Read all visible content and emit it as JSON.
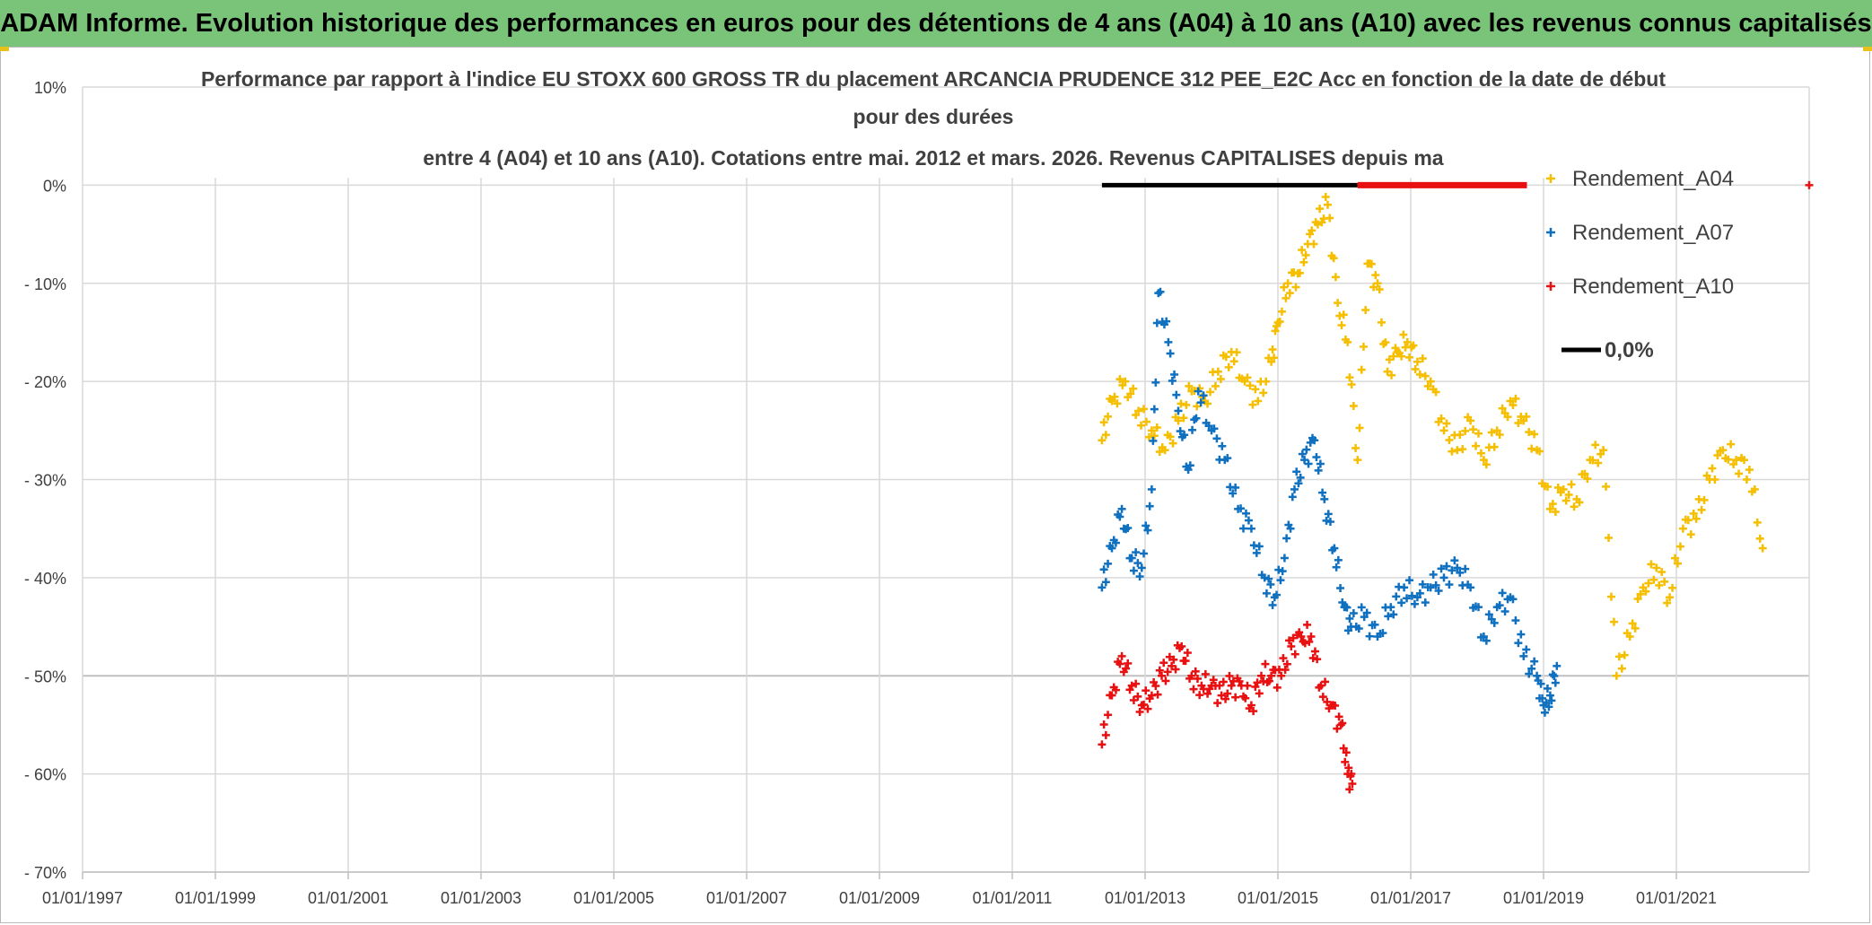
{
  "header": {
    "banner": "ADAM Informe. Evolution historique des performances en euros pour des détentions de 4 ans (A04) à 10 ans (A10) avec les revenus connus capitalisés"
  },
  "colors": {
    "banner_bg": "#7ac47a",
    "a04": "#f5bf00",
    "a07": "#1070c0",
    "a10": "#e81010",
    "zero": "#000000",
    "grid": "#d9d9d9"
  },
  "chart_data": {
    "type": "scatter",
    "title_lines": [
      "Performance par rapport à l'indice EU STOXX 600 GROSS TR  du placement ARCANCIA PRUDENCE 312 PEE_E2C Acc en fonction de la date de début",
      "pour des durées",
      "entre 4 (A04) et 10 ans (A10). Cotations entre mai. 2012 et mars. 2026. Revenus CAPITALISES depuis ma"
    ],
    "x_tick_labels": [
      "01/01/1997",
      "01/01/1999",
      "01/01/2001",
      "01/01/2003",
      "01/01/2005",
      "01/01/2007",
      "01/01/2009",
      "01/01/2011",
      "01/01/2013",
      "01/01/2015",
      "01/01/2017",
      "01/01/2019",
      "01/01/2021"
    ],
    "x_ticks_year": [
      1997,
      1999,
      2001,
      2003,
      2005,
      2007,
      2009,
      2011,
      2013,
      2015,
      2017,
      2019,
      2021
    ],
    "xlim": [
      1997.0,
      2023.0
    ],
    "y_tick_labels": [
      "10%",
      "0%",
      "- 10%",
      "- 20%",
      "- 30%",
      "- 40%",
      "- 50%",
      "- 60%",
      "- 70%"
    ],
    "y_ticks": [
      10,
      0,
      -10,
      -20,
      -30,
      -40,
      -50,
      -60,
      -70
    ],
    "ylim": [
      -70,
      10
    ],
    "legend": [
      "Rendement_A04",
      "Rendement_A07",
      "Rendement_A10",
      "0,0%"
    ],
    "series": [
      {
        "name": "Rendement_A04",
        "color": "#f5bf00",
        "x": [
          2012.35,
          2012.5,
          2012.7,
          2012.9,
          2013.1,
          2013.3,
          2013.5,
          2013.7,
          2013.9,
          2014.1,
          2014.3,
          2014.5,
          2014.7,
          2014.9,
          2015.0,
          2015.15,
          2015.3,
          2015.45,
          2015.6,
          2015.75,
          2015.9,
          2016.05,
          2016.2,
          2016.35,
          2016.5,
          2016.65,
          2016.8,
          2016.95,
          2017.1,
          2017.3,
          2017.5,
          2017.7,
          2017.9,
          2018.1,
          2018.3,
          2018.5,
          2018.7,
          2018.9,
          2019.1,
          2019.3,
          2019.5,
          2019.7,
          2019.9,
          2020.1,
          2020.3,
          2020.5,
          2020.7,
          2020.9,
          2021.1,
          2021.3,
          2021.5,
          2021.7,
          2021.9,
          2022.1,
          2022.3
        ],
        "y": [
          -26,
          -22,
          -20,
          -23,
          -25,
          -27,
          -24,
          -21,
          -22,
          -19,
          -17,
          -20,
          -22,
          -18,
          -14,
          -10,
          -9,
          -6,
          -4,
          -2,
          -12,
          -16,
          -28,
          -8,
          -10,
          -19,
          -17,
          -16,
          -18,
          -20,
          -25,
          -27,
          -24,
          -28,
          -25,
          -22,
          -24,
          -27,
          -33,
          -31,
          -32,
          -28,
          -27,
          -50,
          -46,
          -41,
          -39,
          -42,
          -35,
          -34,
          -30,
          -27,
          -28,
          -29,
          -37
        ]
      },
      {
        "name": "Rendement_A07",
        "color": "#1070c0",
        "x": [
          2012.35,
          2012.5,
          2012.65,
          2012.8,
          2012.95,
          2013.1,
          2013.2,
          2013.35,
          2013.5,
          2013.65,
          2013.8,
          2014.0,
          2014.2,
          2014.4,
          2014.6,
          2014.8,
          2014.95,
          2015.1,
          2015.25,
          2015.4,
          2015.55,
          2015.7,
          2015.85,
          2016.0,
          2016.1,
          2016.3,
          2016.5,
          2016.7,
          2016.9,
          2017.1,
          2017.3,
          2017.5,
          2017.7,
          2017.9,
          2018.1,
          2018.3,
          2018.5,
          2018.7,
          2018.9,
          2019.0,
          2019.1,
          2019.2
        ],
        "y": [
          -41,
          -37,
          -33,
          -38,
          -39,
          -31,
          -11,
          -16,
          -23,
          -29,
          -21,
          -25,
          -28,
          -33,
          -35,
          -40,
          -42,
          -38,
          -31,
          -28,
          -26,
          -32,
          -37,
          -43,
          -45,
          -44,
          -46,
          -43,
          -41,
          -42,
          -41,
          -40,
          -39,
          -41,
          -46,
          -43,
          -42,
          -48,
          -50,
          -53,
          -52,
          -49
        ]
      },
      {
        "name": "Rendement_A10",
        "color": "#e81010",
        "x": [
          2012.35,
          2012.5,
          2012.65,
          2012.8,
          2012.95,
          2013.1,
          2013.25,
          2013.4,
          2013.55,
          2013.7,
          2013.85,
          2014.0,
          2014.15,
          2014.3,
          2014.45,
          2014.6,
          2014.75,
          2014.9,
          2015.05,
          2015.2,
          2015.35,
          2015.5,
          2015.65,
          2015.8,
          2015.95,
          2016.05,
          2016.12
        ],
        "y": [
          -57,
          -52,
          -48,
          -51,
          -53,
          -52,
          -50,
          -49,
          -47,
          -50,
          -51,
          -51,
          -52,
          -51,
          -51,
          -53,
          -50,
          -50,
          -50,
          -47,
          -46,
          -46,
          -51,
          -53,
          -55,
          -60,
          -61
        ]
      },
      {
        "name": "0,0%",
        "color": "#000000",
        "x": [
          2012.35,
          2016.2
        ],
        "y": [
          0,
          0
        ]
      }
    ],
    "red_zero_segment": {
      "x": [
        2016.2,
        2018.75
      ],
      "y": 0
    }
  }
}
